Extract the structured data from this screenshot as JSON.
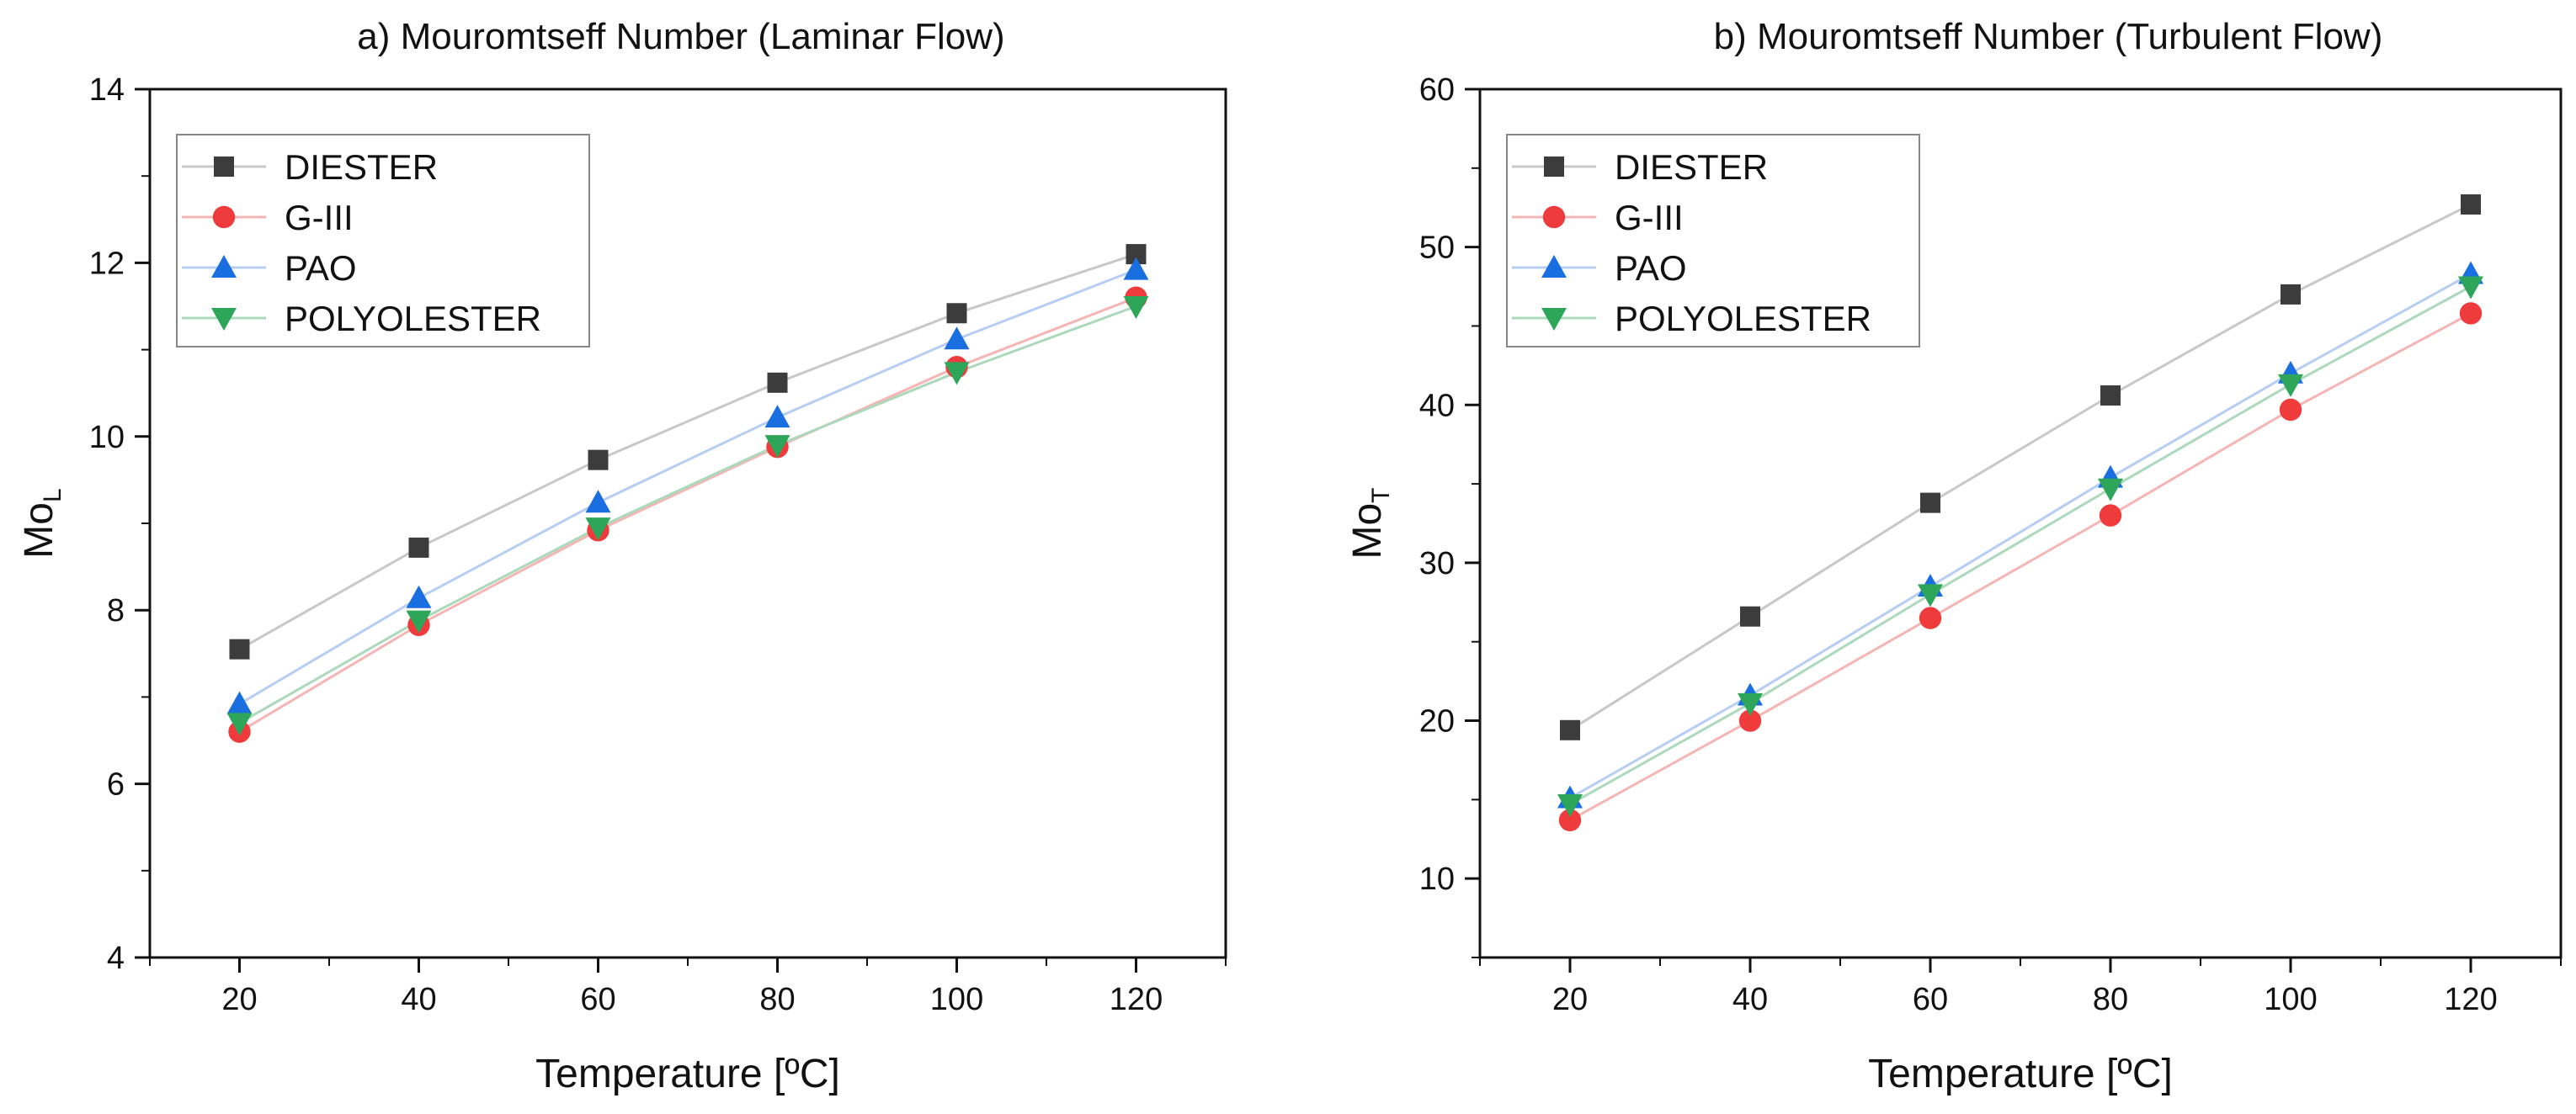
{
  "chart_data": [
    {
      "type": "line",
      "title": "a) Mouromtseff Number (Laminar Flow)",
      "xlabel": "Temperature [ºC]",
      "ylabel": "Mo",
      "ylabel_sub": "L",
      "xlim": [
        10,
        130
      ],
      "ylim": [
        4,
        14
      ],
      "xticks": [
        20,
        40,
        60,
        80,
        100,
        120
      ],
      "yticks": [
        4,
        6,
        8,
        10,
        12,
        14
      ],
      "legend_position": "top-left",
      "x": [
        20,
        40,
        60,
        80,
        100,
        120
      ],
      "series": [
        {
          "name": "DIESTER",
          "marker": "square",
          "color": "#3c3c3c",
          "line_color": "#c8c8c8",
          "values": [
            7.55,
            8.72,
            9.73,
            10.62,
            11.42,
            12.1
          ]
        },
        {
          "name": "G-III",
          "marker": "circle",
          "color": "#ef3b3b",
          "line_color": "#f5b5b5",
          "values": [
            6.6,
            7.83,
            8.92,
            9.88,
            10.8,
            11.6
          ]
        },
        {
          "name": "PAO",
          "marker": "triangle-up",
          "color": "#1a6fe0",
          "line_color": "#b7cdf3",
          "values": [
            6.92,
            8.14,
            9.24,
            10.22,
            11.12,
            11.92
          ]
        },
        {
          "name": "POLYOLESTER",
          "marker": "triangle-down",
          "color": "#2ea65a",
          "line_color": "#acd9bb",
          "values": [
            6.7,
            7.88,
            8.95,
            9.9,
            10.74,
            11.5
          ]
        }
      ]
    },
    {
      "type": "line",
      "title": "b) Mouromtseff Number (Turbulent Flow)",
      "xlabel": "Temperature [ºC]",
      "ylabel": "Mo",
      "ylabel_sub": "T",
      "xlim": [
        10,
        130
      ],
      "ylim": [
        5,
        60
      ],
      "xticks": [
        20,
        40,
        60,
        80,
        100,
        120
      ],
      "yticks": [
        10,
        20,
        30,
        40,
        50,
        60
      ],
      "legend_position": "top-left",
      "x": [
        20,
        40,
        60,
        80,
        100,
        120
      ],
      "series": [
        {
          "name": "DIESTER",
          "marker": "square",
          "color": "#3c3c3c",
          "line_color": "#c8c8c8",
          "values": [
            19.4,
            26.6,
            33.8,
            40.6,
            47.0,
            52.7
          ]
        },
        {
          "name": "G-III",
          "marker": "circle",
          "color": "#ef3b3b",
          "line_color": "#f5b5b5",
          "values": [
            13.7,
            20.0,
            26.5,
            33.0,
            39.7,
            45.8
          ]
        },
        {
          "name": "PAO",
          "marker": "triangle-up",
          "color": "#1a6fe0",
          "line_color": "#b7cdf3",
          "values": [
            15.1,
            21.6,
            28.5,
            35.4,
            42.0,
            48.3
          ]
        },
        {
          "name": "POLYOLESTER",
          "marker": "triangle-down",
          "color": "#2ea65a",
          "line_color": "#acd9bb",
          "values": [
            14.7,
            21.1,
            28.0,
            34.7,
            41.3,
            47.5
          ]
        }
      ]
    }
  ]
}
